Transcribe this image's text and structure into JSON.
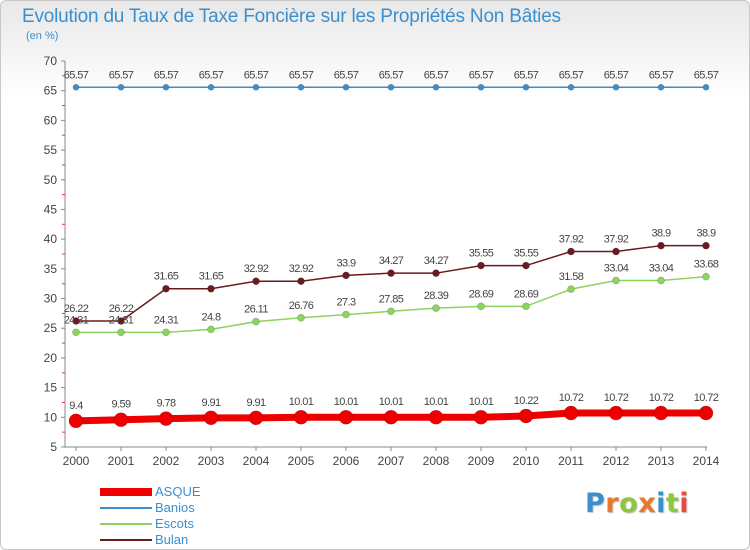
{
  "title": "Evolution du Taux de Taxe Foncière sur les Propriétés Non Bâties",
  "subtitle": "(en %)",
  "logo": "Proxiti",
  "chart_data": {
    "type": "line",
    "title": "Evolution du Taux de Taxe Foncière sur les Propriétés Non Bâties",
    "ylabel": "(en %)",
    "xlabel": "",
    "ylim": [
      5,
      70
    ],
    "yticks": [
      5,
      10,
      15,
      20,
      25,
      30,
      35,
      40,
      45,
      50,
      55,
      60,
      65,
      70
    ],
    "grid": false,
    "legend_position": "bottom-left",
    "categories": [
      "2000",
      "2001",
      "2002",
      "2003",
      "2004",
      "2005",
      "2006",
      "2007",
      "2008",
      "2009",
      "2010",
      "2011",
      "2012",
      "2013",
      "2014"
    ],
    "series": [
      {
        "name": "Banios",
        "color": "#3a8fcf",
        "values": [
          65.57,
          65.57,
          65.57,
          65.57,
          65.57,
          65.57,
          65.57,
          65.57,
          65.57,
          65.57,
          65.57,
          65.57,
          65.57,
          65.57,
          65.57
        ],
        "labels": [
          "65.57",
          "65.57",
          "65.57",
          "65.57",
          "65.57",
          "65.57",
          "65.57",
          "65.57",
          "65.57",
          "65.57",
          "65.57",
          "65.57",
          "65.57",
          "65.57",
          "65.57"
        ]
      },
      {
        "name": "Bulan",
        "color": "#6b1a1f",
        "values": [
          26.22,
          26.22,
          31.65,
          31.65,
          32.92,
          32.92,
          33.9,
          34.27,
          34.27,
          35.55,
          35.55,
          37.92,
          37.92,
          38.9,
          38.9
        ],
        "labels": [
          "26.22",
          "26.22",
          "31.65",
          "31.65",
          "32.92",
          "32.92",
          "33.9",
          "34.27",
          "34.27",
          "35.55",
          "35.55",
          "37.92",
          "37.92",
          "38.9",
          "38.9"
        ]
      },
      {
        "name": "Escots",
        "color": "#8dd35f",
        "values": [
          24.31,
          24.31,
          24.31,
          24.8,
          26.11,
          26.76,
          27.3,
          27.85,
          28.39,
          28.69,
          28.69,
          31.58,
          33.04,
          33.04,
          33.68
        ],
        "labels": [
          "24.31",
          "24.31",
          "24.31",
          "24.8",
          "26.11",
          "26.76",
          "27.3",
          "27.85",
          "28.39",
          "28.69",
          "28.69",
          "31.58",
          "33.04",
          "33.04",
          "33.68"
        ]
      },
      {
        "name": "ASQUE",
        "color": "#ee0000",
        "values": [
          9.4,
          9.59,
          9.78,
          9.91,
          9.91,
          10.01,
          10.01,
          10.01,
          10.01,
          10.01,
          10.22,
          10.72,
          10.72,
          10.72,
          10.72
        ],
        "labels": [
          "9.4",
          "9.59",
          "9.78",
          "9.91",
          "9.91",
          "10.01",
          "10.01",
          "10.01",
          "10.01",
          "10.01",
          "10.22",
          "10.72",
          "10.72",
          "10.72",
          "10.72"
        ]
      }
    ],
    "legend": [
      "ASQUE",
      "Banios",
      "Escots",
      "Bulan"
    ]
  }
}
